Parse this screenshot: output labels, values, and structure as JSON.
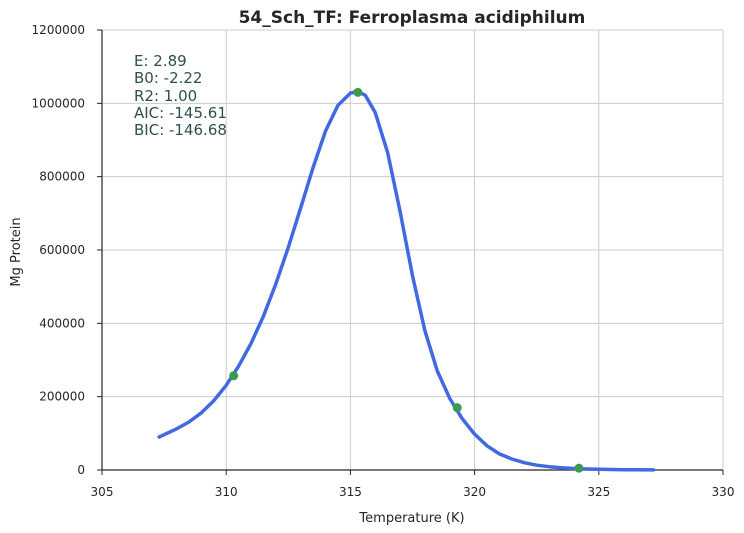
{
  "chart_data": {
    "type": "line",
    "title": "54_Sch_TF: Ferroplasma acidiphilum",
    "xlabel": "Temperature (K)",
    "ylabel": "Mg Protein",
    "xlim": [
      305,
      330
    ],
    "ylim": [
      0,
      1200000
    ],
    "xticks": [
      "305",
      "310",
      "315",
      "320",
      "325",
      "330"
    ],
    "yticks": [
      "0",
      "200000",
      "400000",
      "600000",
      "800000",
      "1000000",
      "1200000"
    ],
    "grid": true,
    "annotations": [
      "E:  2.89",
      "B0:  -2.22",
      "R2:  1.00",
      "AIC: -145.61",
      "BIC: -146.68"
    ],
    "series": [
      {
        "kind": "fitted-curve",
        "color": "#4169e1",
        "x": [
          307.3,
          308.0,
          308.5,
          309.0,
          309.5,
          310.0,
          310.5,
          311.0,
          311.5,
          312.0,
          312.5,
          313.0,
          313.5,
          314.0,
          314.5,
          315.0,
          315.3,
          315.6,
          316.0,
          316.5,
          317.0,
          317.5,
          318.0,
          318.5,
          319.0,
          319.5,
          320.0,
          320.5,
          321.0,
          321.5,
          322.0,
          322.5,
          323.0,
          323.5,
          324.0,
          324.5,
          325.0,
          326.0,
          327.2
        ],
        "y": [
          90000,
          112000,
          131000,
          156000,
          189000,
          231000,
          283000,
          345000,
          420000,
          508000,
          607000,
          715000,
          825000,
          925000,
          995000,
          1028000,
          1032000,
          1022000,
          975000,
          865000,
          705000,
          530000,
          380000,
          270000,
          195000,
          140000,
          98000,
          66000,
          44000,
          30000,
          20000,
          13000,
          9000,
          6000,
          4000,
          2600,
          1800,
          900,
          300
        ]
      },
      {
        "kind": "observed-points",
        "color": "#3c9a50",
        "x": [
          310.3,
          315.3,
          319.3,
          324.2
        ],
        "y": [
          257000,
          1030000,
          170000,
          5000
        ]
      }
    ]
  }
}
